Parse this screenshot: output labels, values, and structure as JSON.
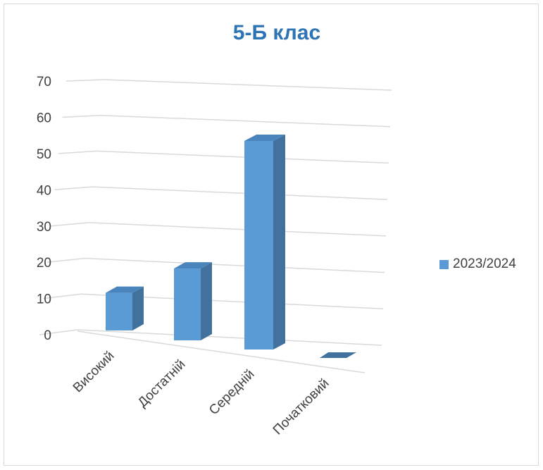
{
  "chart_data": {
    "type": "bar",
    "title": "5-Б клас",
    "categories": [
      "Високий",
      "Достатній",
      "Середній",
      "Початковий"
    ],
    "series": [
      {
        "name": "2023/2024",
        "values": [
          11,
          21,
          61,
          0
        ]
      }
    ],
    "yticks": [
      "0",
      "10",
      "20",
      "30",
      "40",
      "50",
      "60",
      "70"
    ],
    "ylim": [
      0,
      70
    ],
    "grid": true,
    "legend": "right",
    "colors": {
      "front": "#5b9bd5",
      "side": "#41719c",
      "top": "#4a84bd",
      "grid": "#d9d9d9",
      "title": "#2e74b5"
    }
  }
}
